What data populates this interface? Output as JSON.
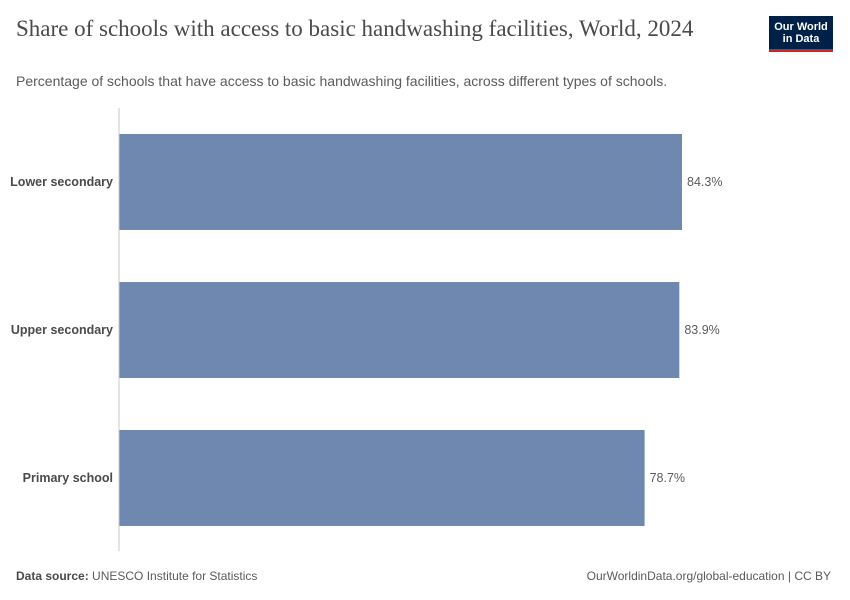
{
  "header": {
    "title": "Share of schools with access to basic handwashing facilities, World, 2024",
    "subtitle": "Percentage of schools that have access to basic handwashing facilities, across different types of schools.",
    "logo_line1": "Our World",
    "logo_line2": "in Data"
  },
  "footer": {
    "source_label": "Data source:",
    "source_value": "UNESCO Institute for Statistics",
    "url": "OurWorldinData.org/global-education | CC BY"
  },
  "colors": {
    "bar": "#6f88b0",
    "axis": "#c8c8c8",
    "label": "#4a4a4a",
    "value_label": "#5b5b5b"
  },
  "chart_data": {
    "type": "bar",
    "orientation": "horizontal",
    "categories": [
      "Lower secondary",
      "Upper secondary",
      "Primary school"
    ],
    "values": [
      84.3,
      83.9,
      78.7
    ],
    "value_labels": [
      "84.3%",
      "83.9%",
      "78.7%"
    ],
    "unit": "%",
    "xlim": [
      0,
      84.3
    ],
    "grid": false,
    "legend": "none"
  }
}
